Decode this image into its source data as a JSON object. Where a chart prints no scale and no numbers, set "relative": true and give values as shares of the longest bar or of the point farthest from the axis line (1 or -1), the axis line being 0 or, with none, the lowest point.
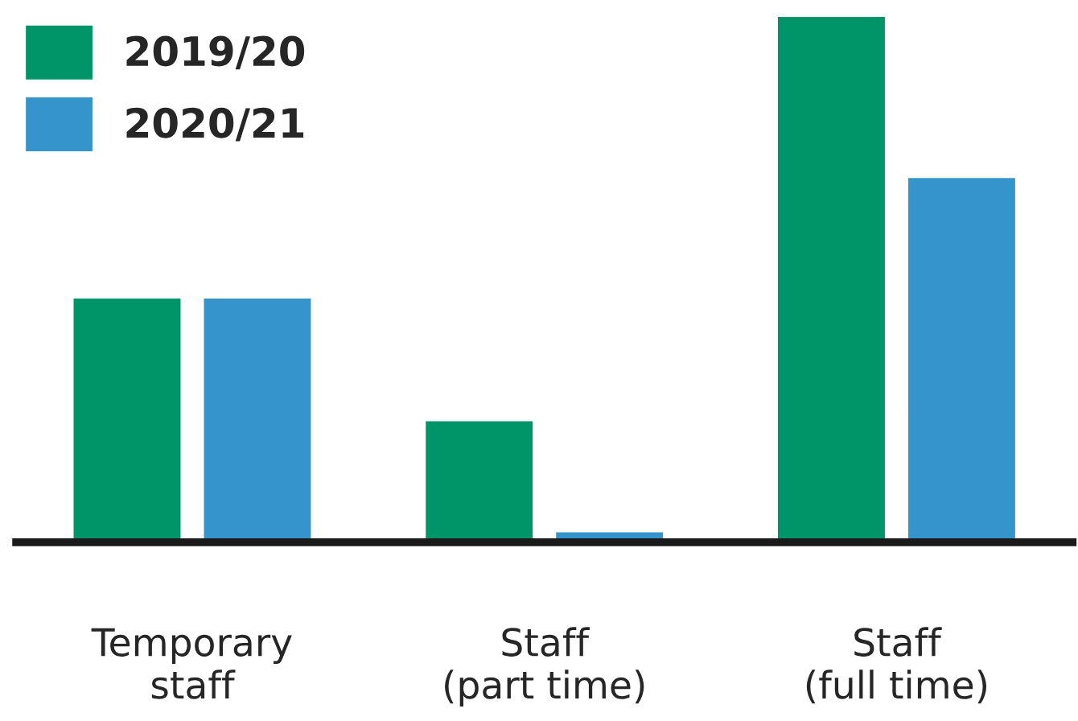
{
  "chart_data": {
    "type": "bar",
    "relative": true,
    "categories": [
      "Temporary\nstaff",
      "Staff\n(part time)",
      "Staff\n(full time)"
    ],
    "series": [
      {
        "name": "2019/20",
        "color": "#009469",
        "values": [
          0.465,
          0.232,
          1
        ]
      },
      {
        "name": "2020/21",
        "color": "#3594cc",
        "values": [
          0.465,
          0.021,
          0.694
        ]
      }
    ],
    "legend": "top left",
    "grid": false
  }
}
